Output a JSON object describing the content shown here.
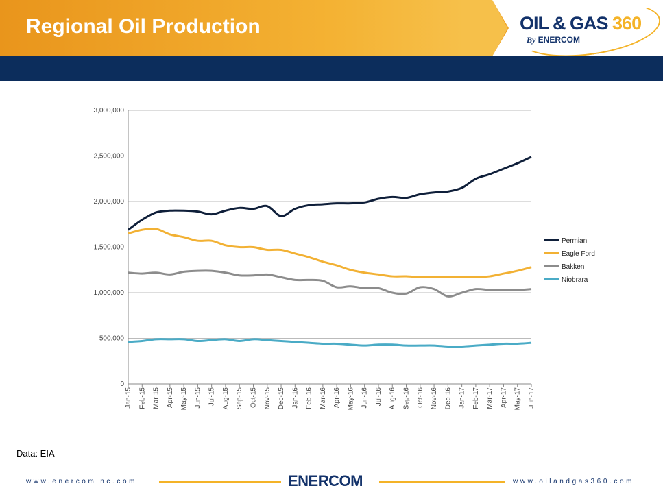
{
  "header": {
    "title": "Regional Oil Production",
    "logo_text": "OIL & GAS 360",
    "logo_sub": "By ENERCOM"
  },
  "source": "Data: EIA",
  "footer": {
    "left_url": "www.enercominc.com",
    "right_url": "www.oilandgas360.com",
    "logo": "ENERCOM"
  },
  "chart_data": {
    "type": "line",
    "title": "",
    "xlabel": "",
    "ylabel": "",
    "ylim": [
      0,
      3000000
    ],
    "yticks": [
      "0",
      "500,000",
      "1,000,000",
      "1,500,000",
      "2,000,000",
      "2,500,000",
      "3,000,000"
    ],
    "grid": "horizontal",
    "legend": "right",
    "categories": [
      "Jan-15",
      "Feb-15",
      "Mar-15",
      "Apr-15",
      "May-15",
      "Jun-15",
      "Jul-15",
      "Aug-15",
      "Sep-15",
      "Oct-15",
      "Nov-15",
      "Dec-15",
      "Jan-16",
      "Feb-16",
      "Mar-16",
      "Apr-16",
      "May-16",
      "Jun-16",
      "Jul-16",
      "Aug-16",
      "Sep-16",
      "Oct-16",
      "Nov-16",
      "Dec-16",
      "Jan-17",
      "Feb-17",
      "Mar-17",
      "Apr-17",
      "May-17",
      "Jun-17"
    ],
    "series": [
      {
        "name": "Permian",
        "color": "#0f1f3a",
        "values": [
          1690000,
          1800000,
          1880000,
          1900000,
          1900000,
          1890000,
          1860000,
          1900000,
          1930000,
          1920000,
          1950000,
          1840000,
          1920000,
          1960000,
          1970000,
          1980000,
          1980000,
          1990000,
          2030000,
          2050000,
          2040000,
          2080000,
          2100000,
          2110000,
          2150000,
          2250000,
          2300000,
          2360000,
          2420000,
          2490000
        ]
      },
      {
        "name": "Eagle Ford",
        "color": "#f2b134",
        "values": [
          1650000,
          1690000,
          1700000,
          1640000,
          1610000,
          1570000,
          1570000,
          1520000,
          1500000,
          1500000,
          1470000,
          1470000,
          1430000,
          1390000,
          1340000,
          1300000,
          1250000,
          1220000,
          1200000,
          1180000,
          1180000,
          1170000,
          1170000,
          1170000,
          1170000,
          1170000,
          1180000,
          1210000,
          1240000,
          1280000
        ]
      },
      {
        "name": "Bakken",
        "color": "#8c8c8c",
        "values": [
          1220000,
          1210000,
          1220000,
          1200000,
          1230000,
          1240000,
          1240000,
          1220000,
          1190000,
          1190000,
          1200000,
          1170000,
          1140000,
          1140000,
          1130000,
          1060000,
          1070000,
          1050000,
          1050000,
          1000000,
          990000,
          1060000,
          1040000,
          960000,
          1000000,
          1040000,
          1030000,
          1030000,
          1030000,
          1040000
        ]
      },
      {
        "name": "Niobrara",
        "color": "#4aabc6",
        "values": [
          460000,
          470000,
          490000,
          490000,
          490000,
          470000,
          480000,
          490000,
          470000,
          490000,
          480000,
          470000,
          460000,
          450000,
          440000,
          440000,
          430000,
          420000,
          430000,
          430000,
          420000,
          420000,
          420000,
          410000,
          410000,
          420000,
          430000,
          440000,
          440000,
          450000
        ]
      }
    ]
  }
}
